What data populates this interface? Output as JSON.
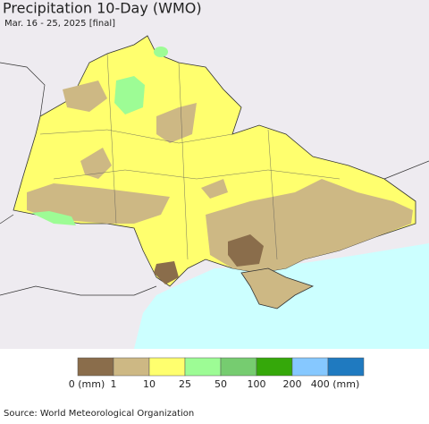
{
  "header": {
    "title": "Precipitation 10-Day (WMO)",
    "subtitle": "Mar. 16 - 25, 2025 [final]"
  },
  "legend": {
    "colors": [
      "#8a6d4b",
      "#cdb884",
      "#ffff6e",
      "#9dfc95",
      "#76cc70",
      "#35a80a",
      "#86c8ff",
      "#1f7ac0"
    ],
    "labels": [
      "0 (mm)",
      "1",
      "10",
      "25",
      "50",
      "100",
      "200",
      "400 (mm)"
    ]
  },
  "footer": {
    "source": "Source: World Meteorological Organization"
  }
}
